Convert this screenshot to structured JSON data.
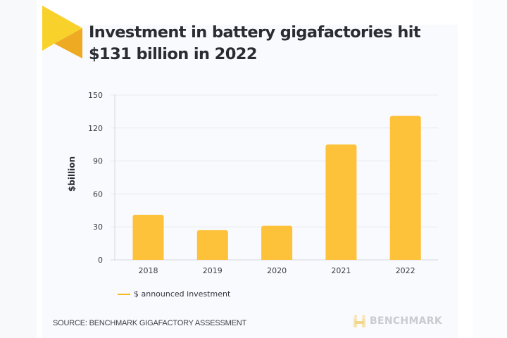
{
  "header": {
    "title_line1": "Investment in battery gigafactories hit",
    "title_line2": "$131 billion in 2022"
  },
  "colors": {
    "bar": "#fdc13a",
    "logo_light": "#f8d12a",
    "logo_dark": "#eeaa22",
    "grid": "#e7e9ee",
    "axis": "#d6d8de"
  },
  "chart_data": {
    "type": "bar",
    "title": "Investment in battery gigafactories hit $131 billion in 2022",
    "xlabel": "",
    "ylabel": "$billion",
    "categories": [
      "2018",
      "2019",
      "2020",
      "2021",
      "2022"
    ],
    "series": [
      {
        "name": "$ announced investment",
        "values": [
          41,
          27,
          31,
          105,
          131
        ]
      }
    ],
    "ylim": [
      0,
      150
    ],
    "yticks": [
      0,
      30,
      60,
      90,
      120,
      150
    ],
    "grid": true,
    "legend_position": "bottom-left"
  },
  "legend": {
    "label": "$ announced investment"
  },
  "footer": {
    "source": "SOURCE: BENCHMARK GIGAFACTORY ASSESSMENT",
    "brand": "BENCHMARK",
    "brand_icon": "benchmark-logo-icon"
  },
  "logo": {
    "icon": "triangle-flag-icon"
  }
}
